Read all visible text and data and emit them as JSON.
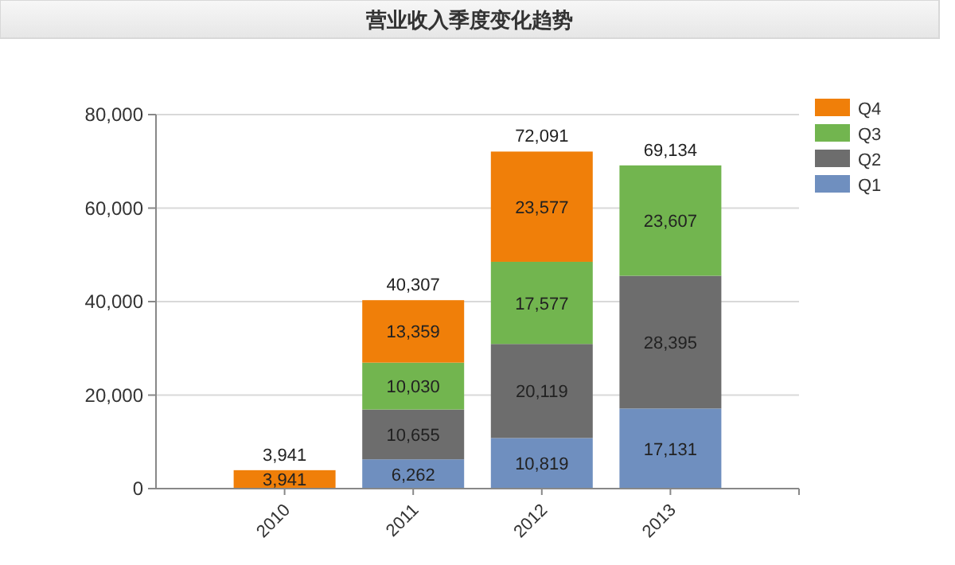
{
  "chart_data": {
    "type": "bar",
    "title": "营业收入季度变化趋势",
    "stacked": true,
    "categories": [
      "2010",
      "2011",
      "2012",
      "2013"
    ],
    "series": [
      {
        "name": "Q1",
        "color": "#6f8fbf",
        "values": [
          null,
          6262,
          10819,
          17131
        ],
        "value_labels": [
          null,
          "6,262",
          "10,819",
          "17,131"
        ]
      },
      {
        "name": "Q2",
        "color": "#6d6d6d",
        "values": [
          null,
          10655,
          20119,
          28395
        ],
        "value_labels": [
          null,
          "10,655",
          "20,119",
          "28,395"
        ]
      },
      {
        "name": "Q3",
        "color": "#72b54f",
        "values": [
          null,
          10030,
          17577,
          23607
        ],
        "value_labels": [
          null,
          "10,030",
          "17,577",
          "23,607"
        ]
      },
      {
        "name": "Q4",
        "color": "#f07f09",
        "values": [
          3941,
          13359,
          23577,
          null
        ],
        "value_labels": [
          "3,941",
          "13,359",
          "23,577",
          null
        ]
      }
    ],
    "totals": [
      "3,941",
      "40,307",
      "72,091",
      "69,134"
    ],
    "ylim": [
      0,
      80000
    ],
    "yticks": [
      {
        "value": 0,
        "label": "0"
      },
      {
        "value": 20000,
        "label": "20,000"
      },
      {
        "value": 40000,
        "label": "40,000"
      },
      {
        "value": 60000,
        "label": "60,000"
      },
      {
        "value": 80000,
        "label": "80,000"
      }
    ],
    "grid": "y",
    "legend": "top right"
  }
}
